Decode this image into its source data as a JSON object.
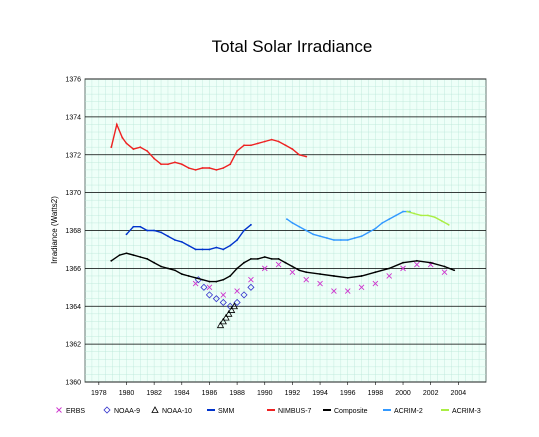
{
  "chart_data": {
    "type": "line",
    "title": "Total Solar Irradiance",
    "ylabel": "Irradiance (Watts2)",
    "xlabel": "",
    "xlim": [
      1977,
      2006
    ],
    "ylim": [
      1360,
      1376
    ],
    "y_ticks": [
      1360,
      1362,
      1364,
      1366,
      1368,
      1370,
      1372,
      1374,
      1376
    ],
    "y_tick_labels": [
      "1360",
      "1362",
      "1364",
      "1366",
      "1368",
      "1370",
      "1372",
      "1374",
      "1376"
    ],
    "x_ticks": [
      1978,
      1980,
      1982,
      1984,
      1986,
      1988,
      1990,
      1992,
      1994,
      1996,
      1998,
      2000,
      2002,
      2004
    ],
    "x_tick_labels": [
      "1978",
      "1980",
      "1982",
      "1984",
      "1986",
      "1988",
      "1990",
      "1992",
      "1994",
      "1996",
      "1998",
      "2000",
      "2002",
      "2004"
    ],
    "grid": true,
    "background_color": "#eefff8",
    "grid_color": "#b9e6d8",
    "legend_position": "bottom",
    "series": [
      {
        "name": "ERBS",
        "color": "#cc33cc",
        "marker": "x",
        "x": [
          1985.0,
          1986.0,
          1987.0,
          1988.0,
          1989.0,
          1990.0,
          1991.0,
          1992.0,
          1993.0,
          1994.0,
          1995.0,
          1996.0,
          1997.0,
          1998.0,
          1999.0,
          2000.0,
          2001.0,
          2002.0,
          2003.0
        ],
        "y": [
          1365.2,
          1365.0,
          1364.6,
          1364.8,
          1365.4,
          1366.0,
          1366.2,
          1365.8,
          1365.4,
          1365.2,
          1364.8,
          1364.8,
          1365.0,
          1365.2,
          1365.6,
          1366.0,
          1366.2,
          1366.2,
          1365.8
        ]
      },
      {
        "name": "NOAA-9",
        "color": "#3333cc",
        "marker": "diamond",
        "x": [
          1985.2,
          1985.6,
          1986.0,
          1986.5,
          1987.0,
          1987.5,
          1988.0,
          1988.5,
          1989.0
        ],
        "y": [
          1365.4,
          1365.0,
          1364.6,
          1364.4,
          1364.2,
          1364.0,
          1364.2,
          1364.6,
          1365.0
        ]
      },
      {
        "name": "NOAA-10",
        "color": "#000000",
        "marker": "triangle",
        "x": [
          1986.8,
          1987.0,
          1987.2,
          1987.4,
          1987.6,
          1987.8
        ],
        "y": [
          1363.0,
          1363.2,
          1363.4,
          1363.6,
          1363.8,
          1364.0
        ]
      },
      {
        "name": "SMM",
        "color": "#0033cc",
        "marker": "line",
        "x": [
          1980.0,
          1980.5,
          1981.0,
          1981.5,
          1982.0,
          1982.5,
          1983.0,
          1983.5,
          1984.0,
          1984.5,
          1985.0,
          1985.5,
          1986.0,
          1986.5,
          1987.0,
          1987.5,
          1988.0,
          1988.5,
          1989.0
        ],
        "y": [
          1367.8,
          1368.2,
          1368.2,
          1368.0,
          1368.0,
          1367.9,
          1367.7,
          1367.5,
          1367.4,
          1367.2,
          1367.0,
          1367.0,
          1367.0,
          1367.1,
          1367.0,
          1367.2,
          1367.5,
          1368.0,
          1368.3
        ]
      },
      {
        "name": "NIMBUS-7",
        "color": "#ee2222",
        "marker": "line",
        "x": [
          1978.9,
          1979.3,
          1979.7,
          1980.0,
          1980.5,
          1981.0,
          1981.5,
          1982.0,
          1982.5,
          1983.0,
          1983.5,
          1984.0,
          1984.5,
          1985.0,
          1985.5,
          1986.0,
          1986.5,
          1987.0,
          1987.5,
          1988.0,
          1988.5,
          1989.0,
          1989.5,
          1990.0,
          1990.5,
          1991.0,
          1991.5,
          1992.0,
          1992.5,
          1993.0
        ],
        "y": [
          1372.4,
          1373.6,
          1372.9,
          1372.6,
          1372.3,
          1372.4,
          1372.2,
          1371.8,
          1371.5,
          1371.5,
          1371.6,
          1371.5,
          1371.3,
          1371.2,
          1371.3,
          1371.3,
          1371.2,
          1371.3,
          1371.5,
          1372.2,
          1372.5,
          1372.5,
          1372.6,
          1372.7,
          1372.8,
          1372.7,
          1372.5,
          1372.3,
          1372.0,
          1371.9
        ]
      },
      {
        "name": "Composite",
        "color": "#000000",
        "marker": "line",
        "x": [
          1978.9,
          1979.5,
          1980.0,
          1980.5,
          1981.0,
          1981.5,
          1982.0,
          1982.5,
          1983.0,
          1983.5,
          1984.0,
          1984.5,
          1985.0,
          1985.5,
          1986.0,
          1986.5,
          1987.0,
          1987.5,
          1988.0,
          1988.5,
          1989.0,
          1989.5,
          1990.0,
          1990.5,
          1991.0,
          1991.5,
          1992.0,
          1992.5,
          1993.0,
          1994.0,
          1995.0,
          1996.0,
          1997.0,
          1998.0,
          1999.0,
          2000.0,
          2001.0,
          2002.0,
          2003.0,
          2003.7
        ],
        "y": [
          1366.4,
          1366.7,
          1366.8,
          1366.7,
          1366.6,
          1366.5,
          1366.3,
          1366.1,
          1366.0,
          1365.9,
          1365.7,
          1365.6,
          1365.5,
          1365.4,
          1365.3,
          1365.3,
          1365.4,
          1365.6,
          1366.0,
          1366.3,
          1366.5,
          1366.5,
          1366.6,
          1366.5,
          1366.5,
          1366.3,
          1366.1,
          1365.9,
          1365.8,
          1365.7,
          1365.6,
          1365.5,
          1365.6,
          1365.8,
          1366.0,
          1366.3,
          1366.4,
          1366.3,
          1366.1,
          1365.9
        ]
      },
      {
        "name": "ACRIM-2",
        "color": "#3399ff",
        "marker": "line",
        "x": [
          1991.6,
          1992.0,
          1992.5,
          1993.0,
          1993.5,
          1994.0,
          1994.5,
          1995.0,
          1995.5,
          1996.0,
          1996.5,
          1997.0,
          1997.5,
          1998.0,
          1998.5,
          1999.0,
          1999.5,
          2000.0,
          2000.5
        ],
        "y": [
          1368.6,
          1368.4,
          1368.2,
          1368.0,
          1367.8,
          1367.7,
          1367.6,
          1367.5,
          1367.5,
          1367.5,
          1367.6,
          1367.7,
          1367.9,
          1368.1,
          1368.4,
          1368.6,
          1368.8,
          1369.0,
          1369.0
        ]
      },
      {
        "name": "ACRIM-3",
        "color": "#aaee44",
        "marker": "line",
        "x": [
          2000.3,
          2000.8,
          2001.3,
          2001.8,
          2002.3,
          2002.8,
          2003.3
        ],
        "y": [
          1369.0,
          1368.9,
          1368.8,
          1368.8,
          1368.7,
          1368.5,
          1368.3
        ]
      }
    ]
  }
}
